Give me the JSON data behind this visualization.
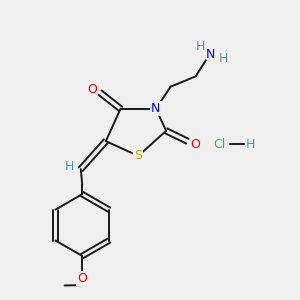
{
  "background_color": "#efefef",
  "bond_color": "#1a1a1a",
  "atom_colors": {
    "N": "#0000ee",
    "O": "#ee0000",
    "S": "#ccaa00",
    "H_amino": "#4a9a9a",
    "Cl": "#33bb33",
    "H_bond": "#4a9a9a",
    "H_exo": "#4a9a9a"
  },
  "figsize": [
    3.0,
    3.0
  ],
  "dpi": 100,
  "xlim": [
    0,
    10
  ],
  "ylim": [
    0,
    10
  ],
  "fontsize": 9
}
